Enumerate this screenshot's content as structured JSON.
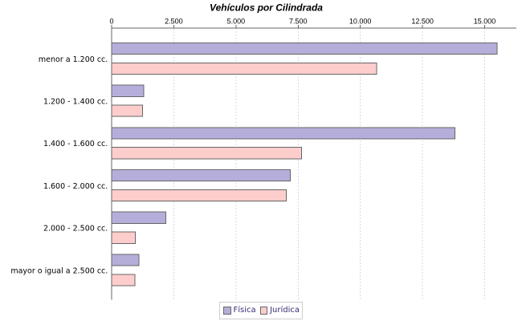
{
  "page": {
    "background": "#ffffff"
  },
  "chart_data": {
    "type": "bar",
    "orientation": "horizontal",
    "title": "Vehículos por Cilindrada",
    "categories": [
      "menor a 1.200 cc.",
      "1.200 - 1.400 cc.",
      "1.400 - 1.600 cc.",
      "1.600 - 2.000 cc.",
      "2.000 - 2.500 cc.",
      "mayor o igual a 2.500 cc."
    ],
    "series": [
      {
        "name": "Física",
        "color": "#b6aeda",
        "values": [
          15500,
          1290,
          13800,
          7190,
          2180,
          1090
        ]
      },
      {
        "name": "Jurídica",
        "color": "#fdcdcc",
        "values": [
          10650,
          1250,
          7630,
          7030,
          950,
          930
        ]
      }
    ],
    "x_axis": {
      "position": "top",
      "min": 0,
      "upper_margin": 0.05,
      "ticks": [
        {
          "value": 0,
          "label": "0"
        },
        {
          "value": 2500,
          "label": "2.500"
        },
        {
          "value": 5000,
          "label": "5.000"
        },
        {
          "value": 7500,
          "label": "7.500"
        },
        {
          "value": 10000,
          "label": "10.000"
        },
        {
          "value": 12500,
          "label": "12.500"
        },
        {
          "value": 15000,
          "label": "15.000"
        }
      ]
    },
    "grid": {
      "vertical": true,
      "style": "dashed"
    },
    "legend_position": "bottom"
  },
  "styles": {
    "bar_border": "#666666",
    "axis_line": "#666666",
    "tick_mark": "#666666",
    "grid_line": "#d9d9d9",
    "legend_border": "#cccccc",
    "legend_text": "#3b2a78",
    "swatch_border": "#666666"
  }
}
